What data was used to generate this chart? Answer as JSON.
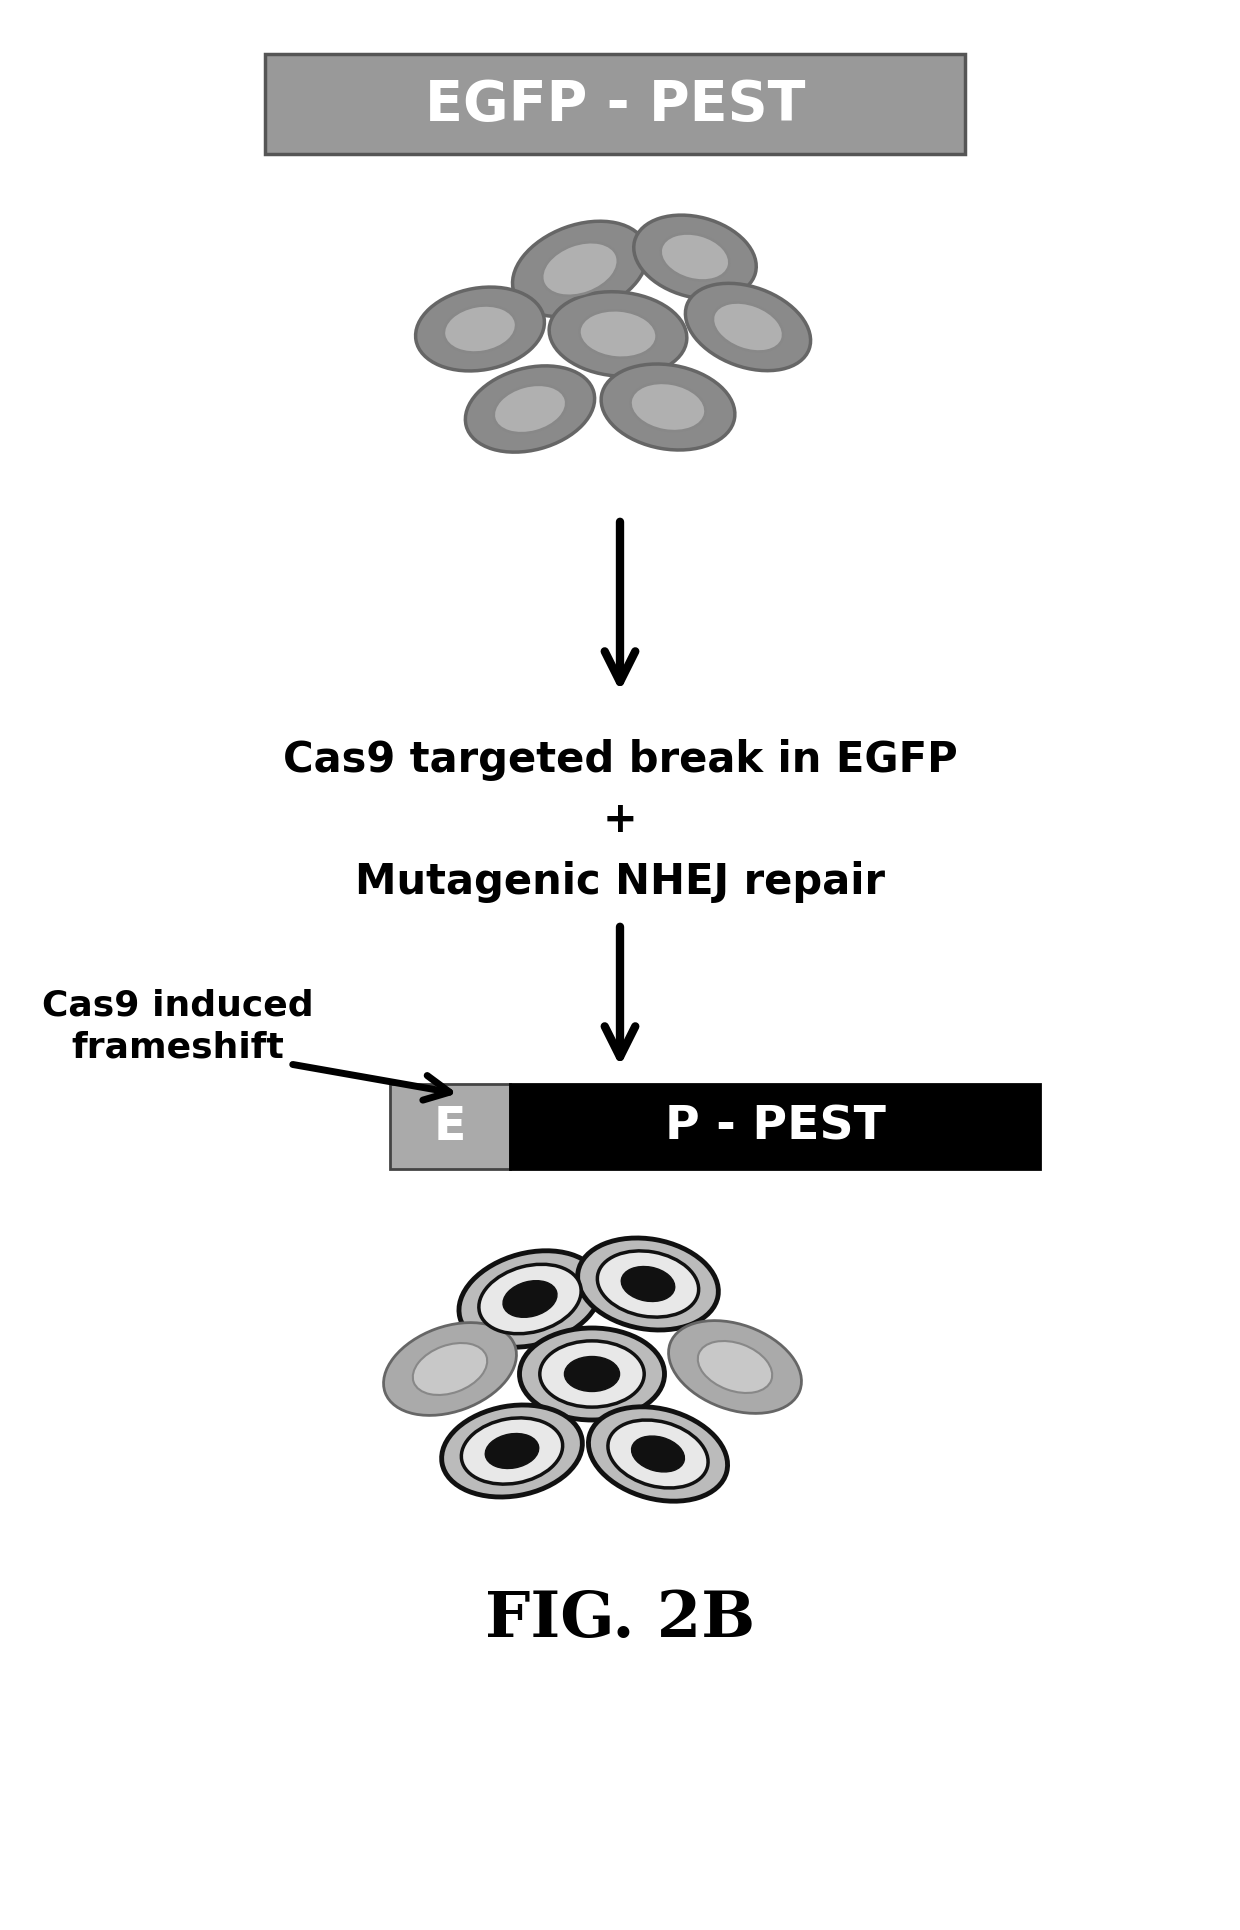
{
  "title_box_text": "EGFP - PEST",
  "title_box_color": "#999999",
  "title_box_text_color": "#ffffff",
  "middle_text_line1": "Cas9 targeted break in EGFP",
  "middle_text_line2": "+",
  "middle_text_line3": "Mutagenic NHEJ repair",
  "label_text_line1": "Cas9 induced",
  "label_text_line2": "frameshift",
  "bottom_box_left_color": "#aaaaaa",
  "bottom_box_left_text": "E",
  "bottom_box_right_color": "#000000",
  "bottom_box_right_text": "P - PEST",
  "fig_label": "FIG. 2B",
  "background_color": "#ffffff",
  "top_cells": [
    [
      580,
      270,
      140,
      88,
      -20
    ],
    [
      695,
      258,
      125,
      80,
      15
    ],
    [
      480,
      330,
      130,
      82,
      -10
    ],
    [
      618,
      335,
      138,
      84,
      5
    ],
    [
      748,
      328,
      130,
      80,
      20
    ],
    [
      530,
      410,
      132,
      82,
      -15
    ],
    [
      668,
      408,
      135,
      84,
      10
    ]
  ],
  "bot_cells": [
    [
      530,
      1300,
      145,
      92,
      -15,
      false
    ],
    [
      648,
      1285,
      142,
      90,
      10,
      false
    ],
    [
      450,
      1370,
      138,
      85,
      -20,
      true
    ],
    [
      592,
      1375,
      145,
      92,
      0,
      false
    ],
    [
      735,
      1368,
      138,
      85,
      20,
      true
    ],
    [
      512,
      1452,
      142,
      90,
      -10,
      false
    ],
    [
      658,
      1455,
      142,
      90,
      15,
      false
    ]
  ]
}
